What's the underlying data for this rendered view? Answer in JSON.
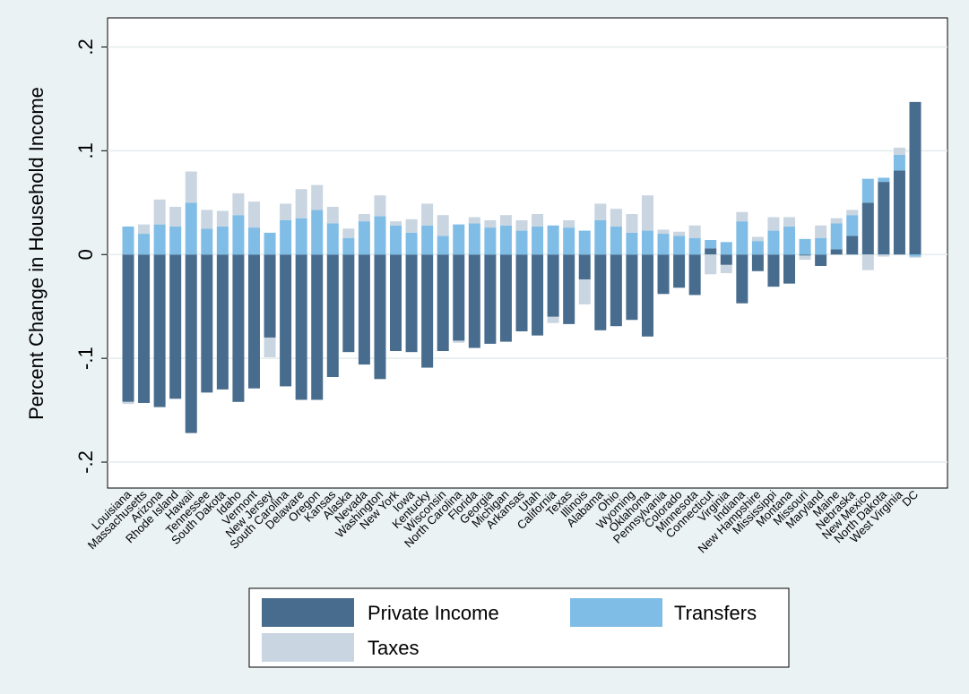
{
  "chart_data": {
    "type": "stacked_bar",
    "y_label": "Percent Change in Household Income",
    "categories": [
      "Louisiana",
      "Massachusetts",
      "Arizona",
      "Rhode Island",
      "Hawaii",
      "Tennessee",
      "South Dakota",
      "Idaho",
      "Vermont",
      "New Jersey",
      "South Carolina",
      "Delaware",
      "Oregon",
      "Kansas",
      "Alaska",
      "Nevada",
      "Washington",
      "New York",
      "Iowa",
      "Kentucky",
      "Wisconsin",
      "North Carolina",
      "Florida",
      "Georgia",
      "Michigan",
      "Arkansas",
      "Utah",
      "California",
      "Texas",
      "Illinois",
      "Alabama",
      "Ohio",
      "Wyoming",
      "Oklahoma",
      "Pennsylvania",
      "Colorado",
      "Minnesota",
      "Connecticut",
      "Virginia",
      "Indiana",
      "New Hampshire",
      "Mississippi",
      "Montana",
      "Missouri",
      "Maryland",
      "Maine",
      "Nebraska",
      "New Mexico",
      "North Dakota",
      "West Virginia",
      "DC"
    ],
    "series": [
      {
        "name": "Private Income",
        "color": "#486c8d",
        "values": [
          -0.142,
          -0.143,
          -0.147,
          -0.139,
          -0.172,
          -0.133,
          -0.13,
          -0.142,
          -0.129,
          -0.08,
          -0.127,
          -0.14,
          -0.14,
          -0.118,
          -0.094,
          -0.106,
          -0.12,
          -0.093,
          -0.094,
          -0.109,
          -0.093,
          -0.083,
          -0.09,
          -0.086,
          -0.084,
          -0.074,
          -0.078,
          -0.06,
          -0.067,
          -0.024,
          -0.073,
          -0.069,
          -0.063,
          -0.079,
          -0.038,
          -0.032,
          -0.039,
          0.006,
          -0.01,
          -0.047,
          -0.016,
          -0.031,
          -0.028,
          -0.001,
          -0.011,
          0.005,
          0.018,
          0.05,
          0.07,
          0.081,
          0.147
        ]
      },
      {
        "name": "Transfers",
        "color": "#80bde6",
        "values": [
          0.027,
          0.02,
          0.029,
          0.027,
          0.05,
          0.025,
          0.027,
          0.038,
          0.026,
          0.021,
          0.033,
          0.035,
          0.043,
          0.03,
          0.016,
          0.032,
          0.037,
          0.028,
          0.021,
          0.028,
          0.018,
          0.029,
          0.03,
          0.026,
          0.028,
          0.023,
          0.027,
          0.028,
          0.026,
          0.023,
          0.033,
          0.027,
          0.021,
          0.023,
          0.02,
          0.018,
          0.016,
          0.008,
          0.012,
          0.032,
          0.013,
          0.023,
          0.027,
          0.015,
          0.016,
          0.025,
          0.02,
          0.023,
          0.004,
          0.015,
          -0.002
        ]
      },
      {
        "name": "Taxes",
        "color": "#c9d5e0",
        "values": [
          -0.002,
          0.009,
          0.024,
          0.019,
          0.03,
          0.018,
          0.015,
          0.021,
          0.025,
          -0.019,
          0.016,
          0.028,
          0.024,
          0.016,
          0.009,
          0.007,
          0.02,
          0.004,
          0.013,
          0.021,
          0.02,
          -0.002,
          0.006,
          0.007,
          0.01,
          0.01,
          0.012,
          -0.006,
          0.007,
          -0.024,
          0.016,
          0.017,
          0.018,
          0.034,
          0.004,
          0.004,
          0.012,
          -0.019,
          -0.008,
          0.009,
          0.004,
          0.013,
          0.009,
          -0.004,
          0.012,
          0.005,
          0.005,
          -0.015,
          -0.002,
          0.007,
          -0.001
        ]
      }
    ],
    "ylim": [
      -0.225,
      0.228
    ],
    "yticks": [
      {
        "value": -0.2,
        "label": "-.2"
      },
      {
        "value": -0.1,
        "label": "-.1"
      },
      0,
      {
        "value": 0.1,
        "label": ".1"
      },
      {
        "value": 0.2,
        "label": ".2"
      }
    ],
    "grid": true
  }
}
